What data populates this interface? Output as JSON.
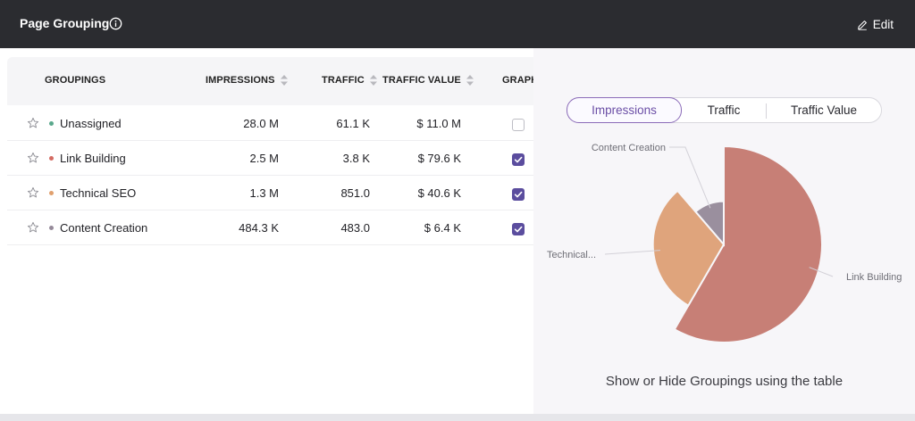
{
  "header": {
    "title": "Page Grouping",
    "edit_label": "Edit"
  },
  "table": {
    "columns": [
      "GROUPINGS",
      "IMPRESSIONS",
      "TRAFFIC",
      "TRAFFIC VALUE",
      "GRAPH"
    ],
    "rows": [
      {
        "name": "Unassigned",
        "impressions": "28.0 M",
        "traffic": "61.1 K",
        "traffic_value": "$ 11.0 M",
        "graph": false,
        "color": "#5aa88c"
      },
      {
        "name": "Link Building",
        "impressions": "2.5 M",
        "traffic": "3.8 K",
        "traffic_value": "$ 79.6 K",
        "graph": true,
        "color": "#d46b62"
      },
      {
        "name": "Technical SEO",
        "impressions": "1.3 M",
        "traffic": "851.0",
        "traffic_value": "$ 40.6 K",
        "graph": true,
        "color": "#e0a06e"
      },
      {
        "name": "Content Creation",
        "impressions": "484.3 K",
        "traffic": "483.0",
        "traffic_value": "$ 6.4 K",
        "graph": true,
        "color": "#958a99"
      }
    ]
  },
  "chart_panel": {
    "tabs": [
      "Impressions",
      "Traffic",
      "Traffic Value"
    ],
    "active_tab": "Impressions",
    "hint": "Show or Hide Groupings using the table"
  },
  "chart_data": {
    "type": "pie",
    "metric": "Impressions",
    "slices": [
      {
        "label": "Link Building",
        "value": 2.5,
        "unit": "M",
        "color": "#c77f76"
      },
      {
        "label": "Technical...",
        "value": 1.3,
        "unit": "M",
        "color": "#dfa47c"
      },
      {
        "label": "Content Creation",
        "value": 0.4843,
        "unit": "M",
        "color": "#9a8f9e"
      }
    ]
  }
}
